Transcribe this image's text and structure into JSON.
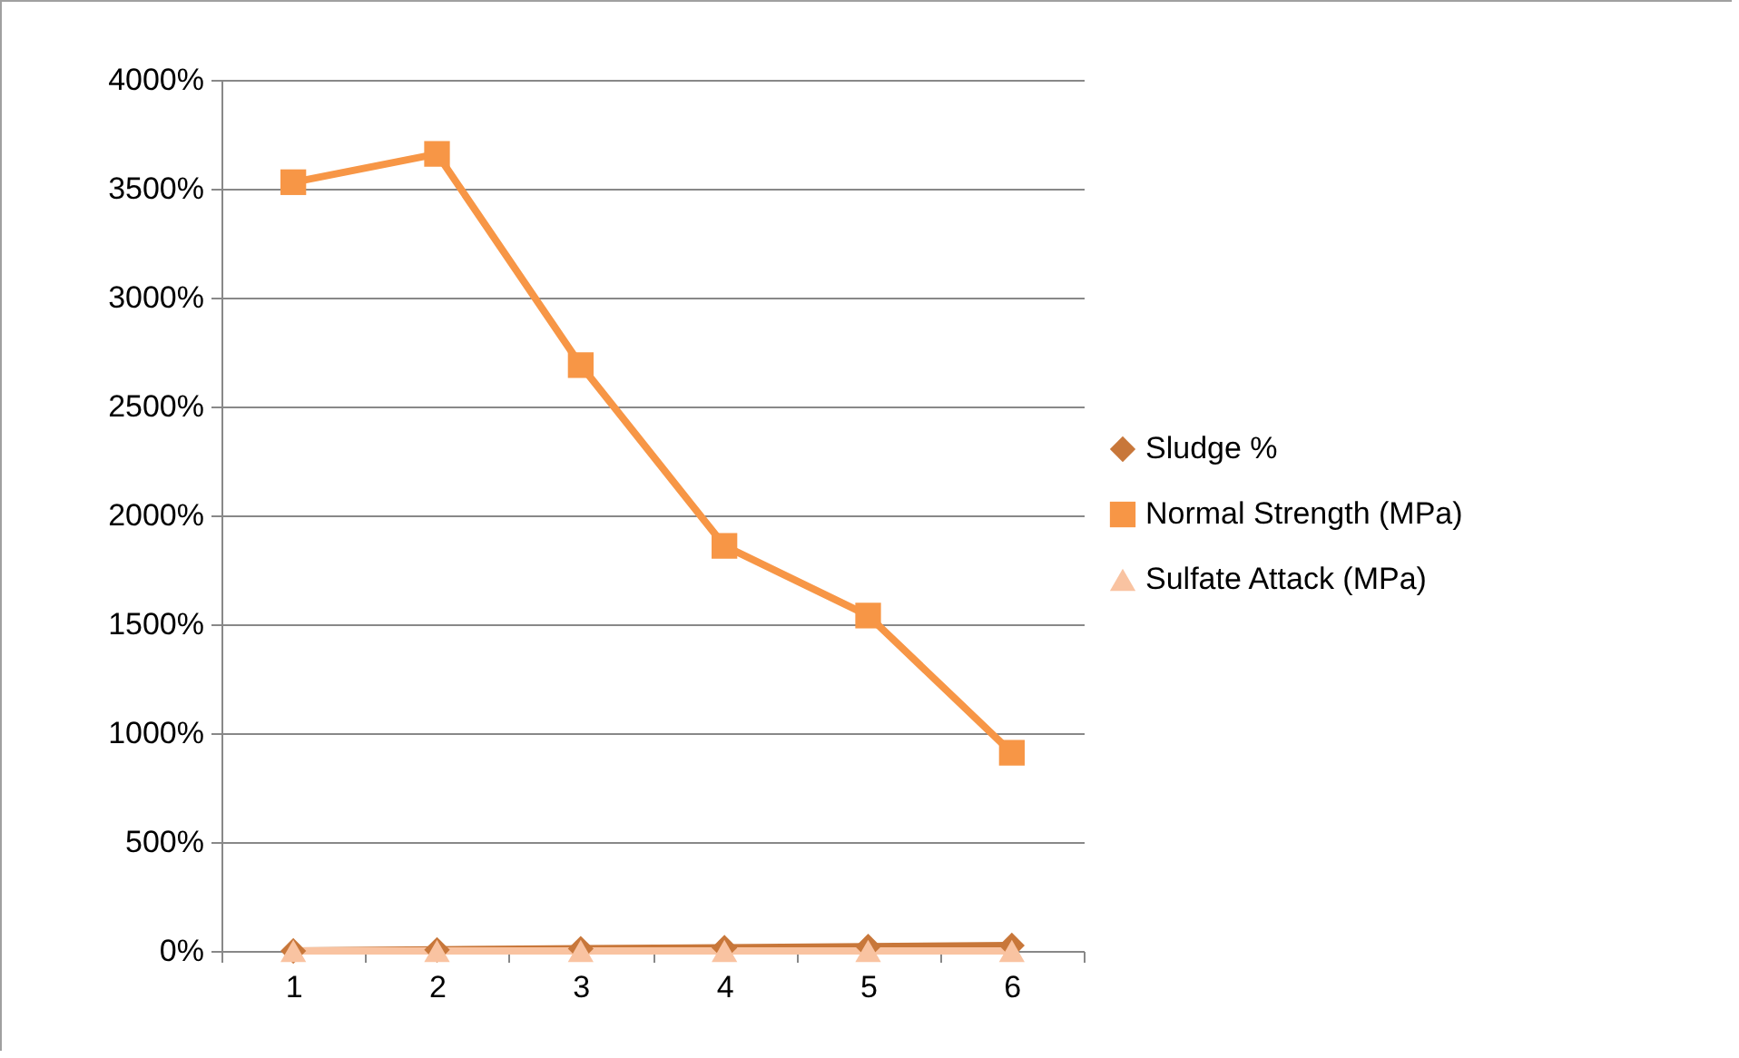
{
  "chart_data": {
    "type": "line",
    "categories": [
      "1",
      "2",
      "3",
      "4",
      "5",
      "6"
    ],
    "series": [
      {
        "name": "Sludge %",
        "color": "#c8773a",
        "marker": "diamond",
        "values": [
          0,
          5,
          10,
          15,
          20,
          25
        ]
      },
      {
        "name": "Normal Strength (MPa)",
        "color": "#f79646",
        "marker": "square",
        "values": [
          3530,
          3660,
          2690,
          1860,
          1540,
          910
        ]
      },
      {
        "name": "Sulfate Attack (MPa)",
        "color": "#f9c3a1",
        "marker": "triangle",
        "values": [
          0,
          0,
          0,
          0,
          0,
          0
        ]
      }
    ],
    "ylim": [
      0,
      4000
    ],
    "yticks": [
      {
        "value": 0,
        "label": "0%"
      },
      {
        "value": 500,
        "label": "500%"
      },
      {
        "value": 1000,
        "label": "1000%"
      },
      {
        "value": 1500,
        "label": "1500%"
      },
      {
        "value": 2000,
        "label": "2000%"
      },
      {
        "value": 2500,
        "label": "2500%"
      },
      {
        "value": 3000,
        "label": "3000%"
      },
      {
        "value": 3500,
        "label": "3500%"
      },
      {
        "value": 4000,
        "label": "4000%"
      }
    ],
    "grid": "y",
    "legend": "right",
    "line_style": "solid"
  }
}
